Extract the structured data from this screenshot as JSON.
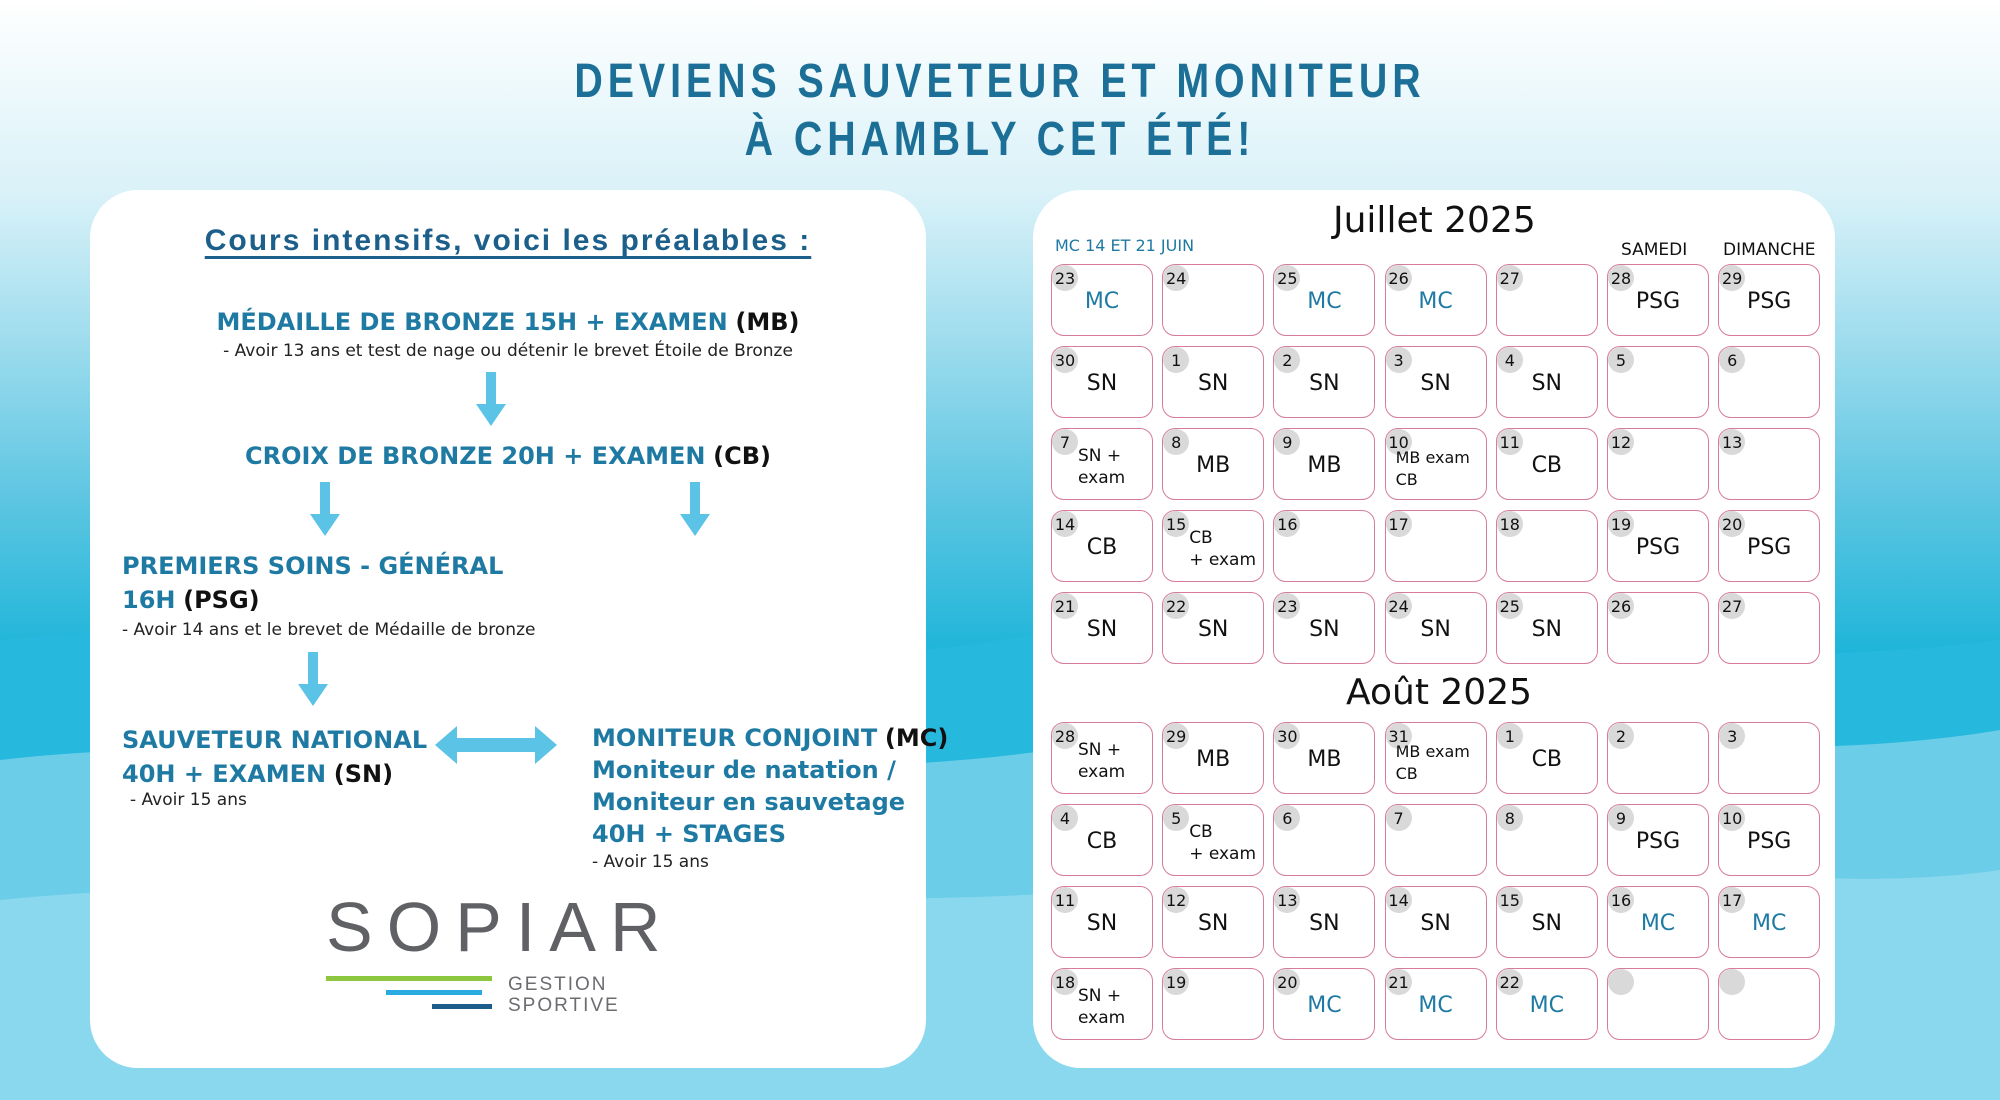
{
  "headline": {
    "line1": "DEVIENS SAUVETEUR ET MONITEUR",
    "line2": "À CHAMBLY CET ÉTÉ!"
  },
  "prereq": {
    "title": "Cours intensifs, voici les préalables :",
    "mb": {
      "label": "MÉDAILLE DE BRONZE 15H + EXAMEN",
      "code": "(MB)",
      "note": "- Avoir 13 ans et test de nage ou détenir le brevet Étoile de Bronze"
    },
    "cb": {
      "label": "CROIX DE BRONZE 20H + EXAMEN",
      "code": "(CB)"
    },
    "psg": {
      "line1": "PREMIERS SOINS - GÉNÉRAL",
      "line2": "16H",
      "code": "(PSG)",
      "note": "- Avoir 14 ans et le brevet de Médaille de bronze"
    },
    "sn": {
      "line1": "SAUVETEUR NATIONAL",
      "line2": "40H + EXAMEN",
      "code": "(SN)",
      "note": "- Avoir 15 ans"
    },
    "mc": {
      "line1": "MONITEUR CONJOINT",
      "code": "(MC)",
      "line2": "Moniteur de natation /",
      "line3": "Moniteur en sauvetage",
      "line4": "40H + STAGES",
      "note": "- Avoir 15 ans"
    }
  },
  "logo": {
    "name": "SOPIAR",
    "line1": "GESTION",
    "line2": "SPORTIVE"
  },
  "calendar": {
    "note": "MC 14 ET 21 JUIN",
    "sat_label": "SAMEDI",
    "sun_label": "DIMANCHE",
    "colors": {
      "border": "#d77c9a",
      "mc": "#1f7aa3",
      "circle": "#d9d9d9"
    },
    "july": {
      "title": "Juillet 2025",
      "weeks": [
        [
          {
            "d": "23",
            "e": "MC"
          },
          {
            "d": "24",
            "e": ""
          },
          {
            "d": "25",
            "e": "MC"
          },
          {
            "d": "26",
            "e": "MC"
          },
          {
            "d": "27",
            "e": ""
          },
          {
            "d": "28",
            "e": "PSG"
          },
          {
            "d": "29",
            "e": "PSG"
          }
        ],
        [
          {
            "d": "30",
            "e": "SN"
          },
          {
            "d": "1",
            "e": "SN"
          },
          {
            "d": "2",
            "e": "SN"
          },
          {
            "d": "3",
            "e": "SN"
          },
          {
            "d": "4",
            "e": "SN"
          },
          {
            "d": "5",
            "e": ""
          },
          {
            "d": "6",
            "e": ""
          }
        ],
        [
          {
            "d": "7",
            "e1": "SN +",
            "e2": "exam"
          },
          {
            "d": "8",
            "e": "MB"
          },
          {
            "d": "9",
            "e": "MB"
          },
          {
            "d": "10",
            "e1": "MB exam",
            "e2": "CB"
          },
          {
            "d": "11",
            "e": "CB"
          },
          {
            "d": "12",
            "e": ""
          },
          {
            "d": "13",
            "e": ""
          }
        ],
        [
          {
            "d": "14",
            "e": "CB"
          },
          {
            "d": "15",
            "e1": "CB",
            "e2": "+ exam"
          },
          {
            "d": "16",
            "e": ""
          },
          {
            "d": "17",
            "e": ""
          },
          {
            "d": "18",
            "e": ""
          },
          {
            "d": "19",
            "e": "PSG"
          },
          {
            "d": "20",
            "e": "PSG"
          }
        ],
        [
          {
            "d": "21",
            "e": "SN"
          },
          {
            "d": "22",
            "e": "SN"
          },
          {
            "d": "23",
            "e": "SN"
          },
          {
            "d": "24",
            "e": "SN"
          },
          {
            "d": "25",
            "e": "SN"
          },
          {
            "d": "26",
            "e": ""
          },
          {
            "d": "27",
            "e": ""
          }
        ]
      ]
    },
    "august": {
      "title": "Août 2025",
      "weeks": [
        [
          {
            "d": "28",
            "e1": "SN +",
            "e2": "exam"
          },
          {
            "d": "29",
            "e": "MB"
          },
          {
            "d": "30",
            "e": "MB"
          },
          {
            "d": "31",
            "e1": "MB exam",
            "e2": "CB"
          },
          {
            "d": "1",
            "e": "CB"
          },
          {
            "d": "2",
            "e": ""
          },
          {
            "d": "3",
            "e": ""
          }
        ],
        [
          {
            "d": "4",
            "e": "CB"
          },
          {
            "d": "5",
            "e1": "CB",
            "e2": "+ exam"
          },
          {
            "d": "6",
            "e": ""
          },
          {
            "d": "7",
            "e": ""
          },
          {
            "d": "8",
            "e": ""
          },
          {
            "d": "9",
            "e": "PSG"
          },
          {
            "d": "10",
            "e": "PSG"
          }
        ],
        [
          {
            "d": "11",
            "e": "SN"
          },
          {
            "d": "12",
            "e": "SN"
          },
          {
            "d": "13",
            "e": "SN"
          },
          {
            "d": "14",
            "e": "SN"
          },
          {
            "d": "15",
            "e": "SN"
          },
          {
            "d": "16",
            "e": "MC"
          },
          {
            "d": "17",
            "e": "MC"
          }
        ],
        [
          {
            "d": "18",
            "e1": "SN +",
            "e2": "exam"
          },
          {
            "d": "19",
            "e": ""
          },
          {
            "d": "20",
            "e": "MC"
          },
          {
            "d": "21",
            "e": "MC"
          },
          {
            "d": "22",
            "e": "MC"
          },
          {
            "d": "",
            "e": ""
          },
          {
            "d": "",
            "e": ""
          }
        ]
      ]
    }
  }
}
